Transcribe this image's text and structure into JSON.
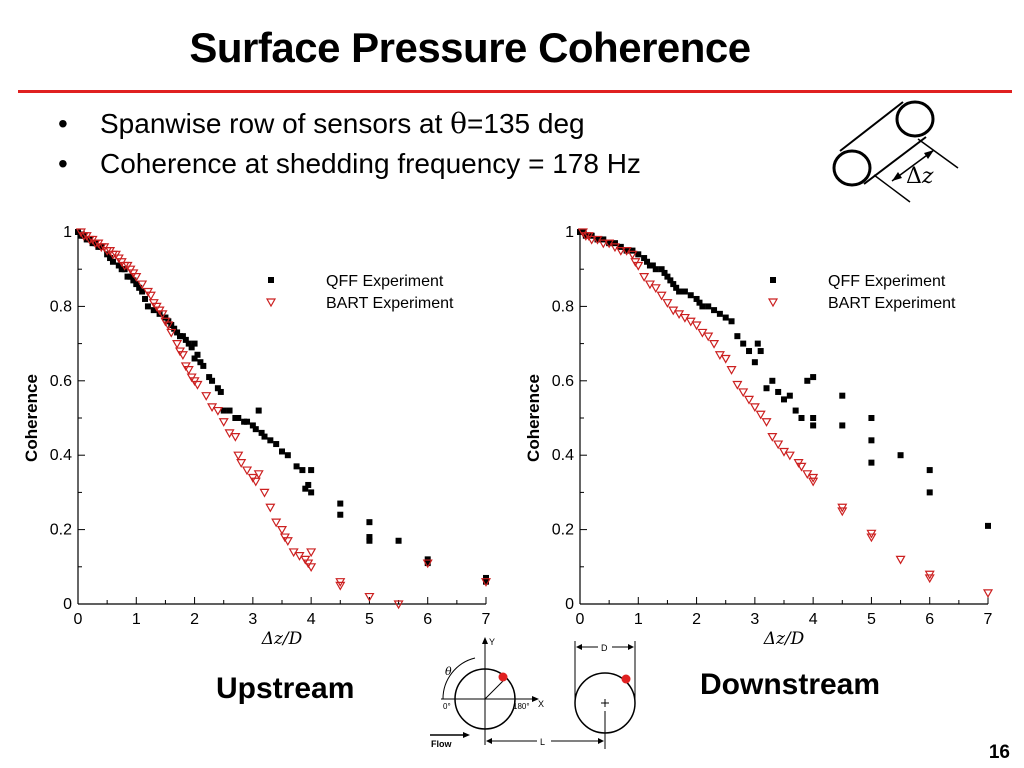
{
  "slide": {
    "title": "Surface Pressure Coherence",
    "bullets": [
      {
        "prefix": "Spanwise row of sensors at ",
        "symbol": "θ",
        "suffix": "=135 deg"
      },
      {
        "prefix": "Coherence at shedding frequency = 178 Hz",
        "symbol": "",
        "suffix": ""
      }
    ],
    "bullet_char": "•",
    "page_number": "16",
    "accent_color": "#e02020"
  },
  "sketch": {
    "label_delta": "Δ",
    "label_z": "z"
  },
  "diagram": {
    "label_y": "Y",
    "label_x": "X",
    "label_theta": "θ",
    "label_0": "0°",
    "label_180": "180°",
    "label_flow": "Flow",
    "label_d": "D",
    "label_l": "L"
  },
  "chart_data": [
    {
      "id": "upstream",
      "caption": "Upstream",
      "type": "scatter",
      "xlabel": "Δz/D",
      "ylabel": "Coherence",
      "xlim": [
        0,
        7
      ],
      "ylim": [
        0,
        1
      ],
      "xticks": [
        "0",
        "1",
        "2",
        "3",
        "4",
        "5",
        "6",
        "7"
      ],
      "yticks": [
        "0",
        "0.2",
        "0.4",
        "0.6",
        "0.8",
        "1"
      ],
      "legend_position": "top-right",
      "series": [
        {
          "name": "QFF Experiment",
          "marker": "square",
          "color": "#000000",
          "points": [
            [
              0.0,
              1.0
            ],
            [
              0.05,
              0.99
            ],
            [
              0.1,
              0.99
            ],
            [
              0.15,
              0.98
            ],
            [
              0.2,
              0.98
            ],
            [
              0.25,
              0.97
            ],
            [
              0.3,
              0.97
            ],
            [
              0.35,
              0.96
            ],
            [
              0.4,
              0.96
            ],
            [
              0.5,
              0.94
            ],
            [
              0.55,
              0.93
            ],
            [
              0.6,
              0.92
            ],
            [
              0.7,
              0.91
            ],
            [
              0.75,
              0.9
            ],
            [
              0.8,
              0.9
            ],
            [
              0.85,
              0.88
            ],
            [
              0.9,
              0.88
            ],
            [
              0.95,
              0.87
            ],
            [
              1.0,
              0.86
            ],
            [
              1.05,
              0.85
            ],
            [
              1.1,
              0.84
            ],
            [
              1.15,
              0.82
            ],
            [
              1.2,
              0.8
            ],
            [
              1.3,
              0.79
            ],
            [
              1.4,
              0.78
            ],
            [
              1.5,
              0.77
            ],
            [
              1.55,
              0.76
            ],
            [
              1.6,
              0.75
            ],
            [
              1.65,
              0.74
            ],
            [
              1.7,
              0.73
            ],
            [
              1.75,
              0.72
            ],
            [
              1.8,
              0.72
            ],
            [
              1.85,
              0.71
            ],
            [
              1.9,
              0.7
            ],
            [
              1.95,
              0.69
            ],
            [
              2.0,
              0.7
            ],
            [
              2.0,
              0.66
            ],
            [
              2.05,
              0.67
            ],
            [
              2.1,
              0.65
            ],
            [
              2.15,
              0.64
            ],
            [
              2.25,
              0.61
            ],
            [
              2.3,
              0.6
            ],
            [
              2.4,
              0.58
            ],
            [
              2.45,
              0.57
            ],
            [
              2.5,
              0.52
            ],
            [
              2.6,
              0.52
            ],
            [
              2.7,
              0.5
            ],
            [
              2.75,
              0.5
            ],
            [
              2.85,
              0.49
            ],
            [
              2.9,
              0.49
            ],
            [
              3.0,
              0.48
            ],
            [
              3.05,
              0.47
            ],
            [
              3.1,
              0.52
            ],
            [
              3.15,
              0.46
            ],
            [
              3.2,
              0.45
            ],
            [
              3.3,
              0.44
            ],
            [
              3.4,
              0.43
            ],
            [
              3.5,
              0.41
            ],
            [
              3.6,
              0.4
            ],
            [
              3.75,
              0.37
            ],
            [
              3.85,
              0.36
            ],
            [
              3.9,
              0.31
            ],
            [
              3.95,
              0.32
            ],
            [
              4.0,
              0.36
            ],
            [
              4.0,
              0.3
            ],
            [
              4.5,
              0.27
            ],
            [
              4.5,
              0.24
            ],
            [
              5.0,
              0.22
            ],
            [
              5.0,
              0.18
            ],
            [
              5.0,
              0.17
            ],
            [
              5.5,
              0.17
            ],
            [
              6.0,
              0.12
            ],
            [
              6.0,
              0.11
            ],
            [
              7.0,
              0.07
            ],
            [
              7.0,
              0.06
            ]
          ]
        },
        {
          "name": "BART Experiment",
          "marker": "triangle-down",
          "color": "#cc2020",
          "points": [
            [
              0.05,
              1.0
            ],
            [
              0.1,
              0.99
            ],
            [
              0.15,
              0.99
            ],
            [
              0.2,
              0.98
            ],
            [
              0.25,
              0.98
            ],
            [
              0.3,
              0.97
            ],
            [
              0.35,
              0.97
            ],
            [
              0.4,
              0.96
            ],
            [
              0.45,
              0.96
            ],
            [
              0.5,
              0.95
            ],
            [
              0.55,
              0.95
            ],
            [
              0.6,
              0.94
            ],
            [
              0.65,
              0.94
            ],
            [
              0.7,
              0.93
            ],
            [
              0.75,
              0.92
            ],
            [
              0.8,
              0.91
            ],
            [
              0.85,
              0.91
            ],
            [
              0.9,
              0.9
            ],
            [
              0.95,
              0.89
            ],
            [
              1.0,
              0.88
            ],
            [
              1.1,
              0.86
            ],
            [
              1.2,
              0.84
            ],
            [
              1.25,
              0.83
            ],
            [
              1.3,
              0.81
            ],
            [
              1.35,
              0.8
            ],
            [
              1.4,
              0.79
            ],
            [
              1.45,
              0.78
            ],
            [
              1.5,
              0.76
            ],
            [
              1.55,
              0.75
            ],
            [
              1.6,
              0.73
            ],
            [
              1.7,
              0.7
            ],
            [
              1.75,
              0.68
            ],
            [
              1.8,
              0.67
            ],
            [
              1.85,
              0.64
            ],
            [
              1.9,
              0.63
            ],
            [
              1.95,
              0.61
            ],
            [
              2.0,
              0.6
            ],
            [
              2.05,
              0.59
            ],
            [
              2.2,
              0.56
            ],
            [
              2.3,
              0.53
            ],
            [
              2.4,
              0.52
            ],
            [
              2.5,
              0.49
            ],
            [
              2.6,
              0.46
            ],
            [
              2.7,
              0.45
            ],
            [
              2.75,
              0.4
            ],
            [
              2.8,
              0.38
            ],
            [
              2.9,
              0.36
            ],
            [
              3.0,
              0.34
            ],
            [
              3.05,
              0.33
            ],
            [
              3.1,
              0.35
            ],
            [
              3.2,
              0.3
            ],
            [
              3.3,
              0.26
            ],
            [
              3.4,
              0.22
            ],
            [
              3.5,
              0.2
            ],
            [
              3.55,
              0.18
            ],
            [
              3.6,
              0.17
            ],
            [
              3.7,
              0.14
            ],
            [
              3.8,
              0.13
            ],
            [
              3.9,
              0.12
            ],
            [
              3.95,
              0.11
            ],
            [
              4.0,
              0.14
            ],
            [
              4.0,
              0.1
            ],
            [
              4.5,
              0.06
            ],
            [
              4.5,
              0.05
            ],
            [
              5.0,
              0.02
            ],
            [
              5.5,
              0.0
            ],
            [
              6.0,
              0.11
            ],
            [
              7.0,
              0.06
            ]
          ]
        }
      ]
    },
    {
      "id": "downstream",
      "caption": "Downstream",
      "type": "scatter",
      "xlabel": "Δz/D",
      "ylabel": "Coherence",
      "xlim": [
        0,
        7
      ],
      "ylim": [
        0,
        1
      ],
      "xticks": [
        "0",
        "1",
        "2",
        "3",
        "4",
        "5",
        "6",
        "7"
      ],
      "yticks": [
        "0",
        "0.2",
        "0.4",
        "0.6",
        "0.8",
        "1"
      ],
      "legend_position": "top-right",
      "series": [
        {
          "name": "QFF Experiment",
          "marker": "square",
          "color": "#000000",
          "points": [
            [
              0.0,
              1.0
            ],
            [
              0.05,
              1.0
            ],
            [
              0.1,
              0.99
            ],
            [
              0.2,
              0.99
            ],
            [
              0.3,
              0.98
            ],
            [
              0.4,
              0.98
            ],
            [
              0.5,
              0.97
            ],
            [
              0.6,
              0.97
            ],
            [
              0.7,
              0.96
            ],
            [
              0.8,
              0.95
            ],
            [
              0.9,
              0.95
            ],
            [
              1.0,
              0.94
            ],
            [
              1.1,
              0.93
            ],
            [
              1.15,
              0.92
            ],
            [
              1.2,
              0.91
            ],
            [
              1.25,
              0.91
            ],
            [
              1.3,
              0.9
            ],
            [
              1.4,
              0.9
            ],
            [
              1.45,
              0.89
            ],
            [
              1.5,
              0.88
            ],
            [
              1.55,
              0.87
            ],
            [
              1.6,
              0.86
            ],
            [
              1.65,
              0.85
            ],
            [
              1.7,
              0.84
            ],
            [
              1.8,
              0.84
            ],
            [
              1.9,
              0.83
            ],
            [
              2.0,
              0.82
            ],
            [
              2.05,
              0.81
            ],
            [
              2.1,
              0.8
            ],
            [
              2.2,
              0.8
            ],
            [
              2.3,
              0.79
            ],
            [
              2.4,
              0.78
            ],
            [
              2.5,
              0.77
            ],
            [
              2.6,
              0.76
            ],
            [
              2.7,
              0.72
            ],
            [
              2.8,
              0.7
            ],
            [
              2.9,
              0.68
            ],
            [
              3.0,
              0.65
            ],
            [
              3.05,
              0.7
            ],
            [
              3.1,
              0.68
            ],
            [
              3.2,
              0.58
            ],
            [
              3.3,
              0.6
            ],
            [
              3.4,
              0.57
            ],
            [
              3.5,
              0.55
            ],
            [
              3.6,
              0.56
            ],
            [
              3.7,
              0.52
            ],
            [
              3.8,
              0.5
            ],
            [
              3.9,
              0.6
            ],
            [
              4.0,
              0.61
            ],
            [
              4.0,
              0.5
            ],
            [
              4.0,
              0.48
            ],
            [
              4.5,
              0.56
            ],
            [
              4.5,
              0.48
            ],
            [
              5.0,
              0.5
            ],
            [
              5.0,
              0.44
            ],
            [
              5.0,
              0.38
            ],
            [
              5.5,
              0.4
            ],
            [
              6.0,
              0.36
            ],
            [
              6.0,
              0.3
            ],
            [
              7.0,
              0.21
            ]
          ]
        },
        {
          "name": "BART Experiment",
          "marker": "triangle-down",
          "color": "#cc2020",
          "points": [
            [
              0.05,
              1.0
            ],
            [
              0.1,
              0.99
            ],
            [
              0.15,
              0.99
            ],
            [
              0.2,
              0.98
            ],
            [
              0.3,
              0.98
            ],
            [
              0.4,
              0.97
            ],
            [
              0.5,
              0.97
            ],
            [
              0.6,
              0.96
            ],
            [
              0.7,
              0.95
            ],
            [
              0.8,
              0.95
            ],
            [
              0.9,
              0.94
            ],
            [
              0.95,
              0.92
            ],
            [
              1.0,
              0.91
            ],
            [
              1.1,
              0.88
            ],
            [
              1.2,
              0.86
            ],
            [
              1.3,
              0.85
            ],
            [
              1.4,
              0.83
            ],
            [
              1.5,
              0.81
            ],
            [
              1.6,
              0.79
            ],
            [
              1.7,
              0.78
            ],
            [
              1.8,
              0.77
            ],
            [
              1.9,
              0.76
            ],
            [
              2.0,
              0.75
            ],
            [
              2.1,
              0.73
            ],
            [
              2.2,
              0.72
            ],
            [
              2.3,
              0.7
            ],
            [
              2.4,
              0.67
            ],
            [
              2.5,
              0.66
            ],
            [
              2.6,
              0.63
            ],
            [
              2.7,
              0.59
            ],
            [
              2.8,
              0.57
            ],
            [
              2.9,
              0.55
            ],
            [
              3.0,
              0.53
            ],
            [
              3.1,
              0.51
            ],
            [
              3.2,
              0.49
            ],
            [
              3.3,
              0.45
            ],
            [
              3.4,
              0.43
            ],
            [
              3.5,
              0.41
            ],
            [
              3.6,
              0.4
            ],
            [
              3.75,
              0.38
            ],
            [
              3.8,
              0.37
            ],
            [
              3.9,
              0.35
            ],
            [
              4.0,
              0.34
            ],
            [
              4.0,
              0.33
            ],
            [
              4.5,
              0.26
            ],
            [
              4.5,
              0.25
            ],
            [
              5.0,
              0.19
            ],
            [
              5.0,
              0.18
            ],
            [
              5.5,
              0.12
            ],
            [
              6.0,
              0.08
            ],
            [
              6.0,
              0.07
            ],
            [
              7.0,
              0.03
            ]
          ]
        }
      ]
    }
  ]
}
